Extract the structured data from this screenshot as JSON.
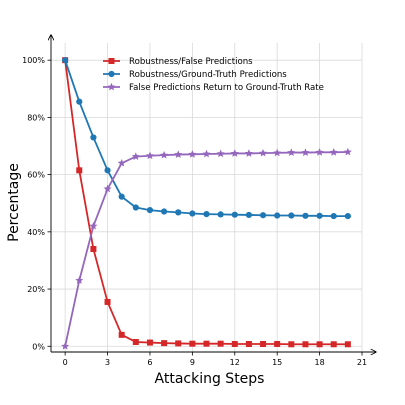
{
  "chart_data": {
    "type": "line",
    "title": "",
    "xlabel": "Attacking Steps",
    "ylabel": "Percentage",
    "x": [
      0,
      1,
      2,
      3,
      4,
      5,
      6,
      7,
      8,
      9,
      10,
      11,
      12,
      13,
      14,
      15,
      16,
      17,
      18,
      19,
      20
    ],
    "xlim": [
      -1,
      21
    ],
    "ylim": [
      -2,
      106
    ],
    "xticks": [
      0,
      3,
      6,
      9,
      12,
      15,
      18,
      21
    ],
    "yticks": [
      0,
      20,
      40,
      60,
      80,
      100
    ],
    "ytick_format": "percent",
    "grid": true,
    "legend_position": "top-right",
    "series": [
      {
        "name": "Robustness/False Predictions",
        "color": "#d62728",
        "marker": "square",
        "values": [
          100,
          61.5,
          34,
          15.5,
          4,
          1.5,
          1.3,
          1.1,
          1,
          0.9,
          0.9,
          0.9,
          0.8,
          0.8,
          0.8,
          0.8,
          0.7,
          0.7,
          0.7,
          0.7,
          0.7
        ]
      },
      {
        "name": "Robustness/Ground-Truth Predictions",
        "color": "#1f77b4",
        "marker": "circle",
        "values": [
          100,
          85.5,
          73,
          61.5,
          52.3,
          48.5,
          47.6,
          47.1,
          46.8,
          46.4,
          46.2,
          46.1,
          46,
          45.9,
          45.8,
          45.7,
          45.7,
          45.6,
          45.6,
          45.5,
          45.5
        ]
      },
      {
        "name": "False Predictions Return to Ground-Truth Rate",
        "color": "#9467bd",
        "marker": "star",
        "values": [
          0,
          23,
          42,
          55,
          64,
          66.3,
          66.6,
          66.8,
          67,
          67.1,
          67.2,
          67.3,
          67.4,
          67.4,
          67.5,
          67.6,
          67.7,
          67.7,
          67.8,
          67.8,
          67.9
        ]
      }
    ]
  }
}
